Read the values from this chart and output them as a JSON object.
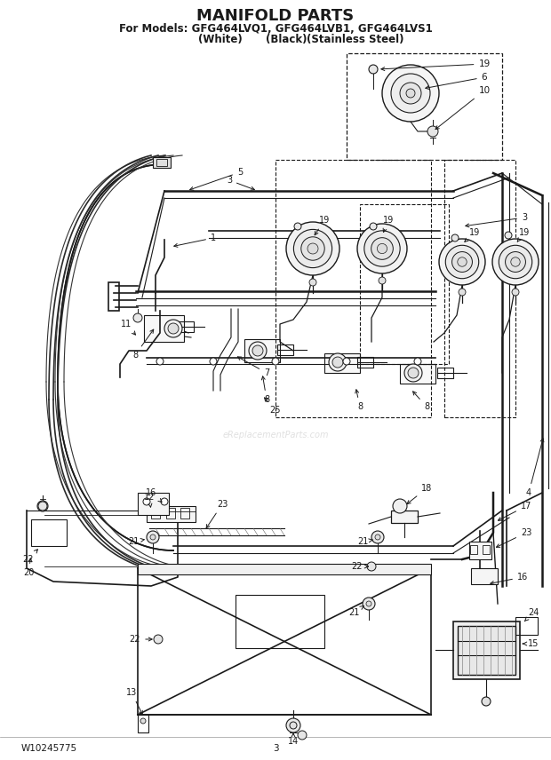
{
  "title": "MANIFOLD PARTS",
  "subtitle_line1": "For Models: GFG464LVQ1, GFG464LVB1, GFG464LVS1",
  "subtitle_line2_col1": "(White)",
  "subtitle_line2_col2": "(Black)",
  "subtitle_line2_col3": "(Stainless Steel)",
  "footer_left": "W10245775",
  "footer_center": "3",
  "background_color": "#ffffff",
  "title_fontsize": 13,
  "subtitle_fontsize": 8.5,
  "footer_fontsize": 7.5,
  "fig_width": 6.2,
  "fig_height": 8.56,
  "dpi": 100,
  "watermark": "eReplacementParts.com",
  "line_color": "#1a1a1a",
  "label_fontsize": 7.0,
  "label_fontsize_lg": 8.5
}
